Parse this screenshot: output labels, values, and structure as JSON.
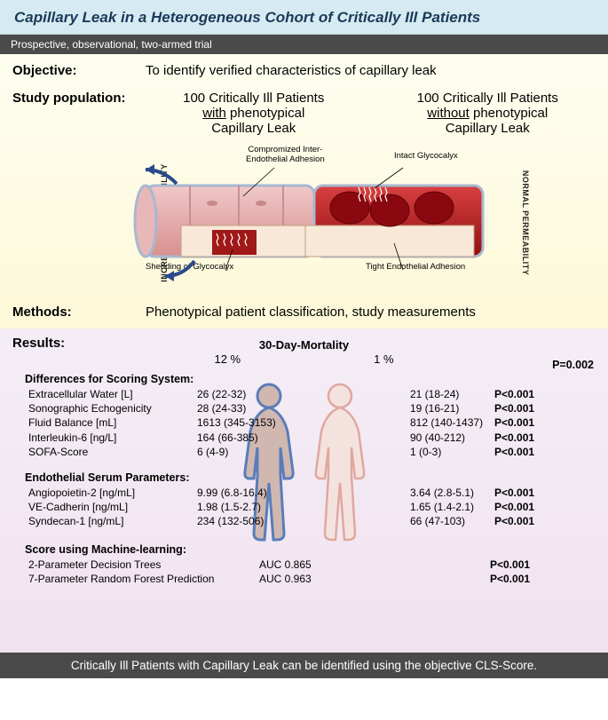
{
  "title": "Capillary Leak in a Heterogeneous Cohort of Critically Ill Patients",
  "subtitle": "Prospective, observational, two-armed trial",
  "objective_label": "Objective:",
  "objective_text": "To identify verified characteristics of capillary leak",
  "studypop_label": "Study population:",
  "pop_left_line1": "100 Critically Ill Patients",
  "pop_left_under": "with",
  "pop_left_line2_tail": " phenotypical",
  "pop_left_line3": "Capillary Leak",
  "pop_right_line1": "100 Critically Ill Patients",
  "pop_right_under": "without",
  "pop_right_line2_tail": " phenotypical",
  "pop_right_line3": "Capillary Leak",
  "perm_left": "INCREASED PERMEABILITY",
  "perm_right": "NORMAL PERMEABILITY",
  "dlabel_compromised_l1": "Compromized Inter-",
  "dlabel_compromised_l2": "Endothelial Adhesion",
  "dlabel_intact": "Intact Glycocalyx",
  "dlabel_shedding": "Shedding of Glycocalyx",
  "dlabel_tight": "Tight Endothelial Adhesion",
  "methods_label": "Methods:",
  "methods_text": "Phenotypical patient classification, study measurements",
  "results_label": "Results:",
  "mortality_header": "30-Day-Mortality",
  "mortality_left": "12 %",
  "mortality_right": "1 %",
  "p_mortality": "P=0.002",
  "sect_diff": "Differences for Scoring System:",
  "diff_rows": [
    {
      "name": "Extracellular Water [L]",
      "v1": "26 (22-32)",
      "v2": "21 (18-24)",
      "p": "P<0.001"
    },
    {
      "name": "Sonographic Echogenicity",
      "v1": "28 (24-33)",
      "v2": "19 (16-21)",
      "p": "P<0.001"
    },
    {
      "name": "Fluid Balance [mL]",
      "v1": "1613 (345-3153)",
      "v2": "812 (140-1437)",
      "p": "P<0.001"
    },
    {
      "name": "Interleukin-6 [ng/L]",
      "v1": "164 (66-385)",
      "v2": "90 (40-212)",
      "p": "P<0.001"
    },
    {
      "name": "SOFA-Score",
      "v1": "6 (4-9)",
      "v2": "1 (0-3)",
      "p": "P<0.001"
    }
  ],
  "sect_endo": "Endothelial Serum Parameters:",
  "endo_rows": [
    {
      "name": "Angiopoietin-2 [ng/mL]",
      "v1": "9.99 (6.8-16.4)",
      "v2": "3.64 (2.8-5.1)",
      "p": "P<0.001"
    },
    {
      "name": "VE-Cadherin [ng/mL]",
      "v1": "1.98 (1.5-2.7)",
      "v2": "1.65 (1.4-2.1)",
      "p": "P<0.001"
    },
    {
      "name": "Syndecan-1 [ng/mL]",
      "v1": "234 (132-506)",
      "v2": "66 (47-103)",
      "p": "P<0.001"
    }
  ],
  "sect_ml": "Score using Machine-learning:",
  "ml_rows": [
    {
      "name": "2-Parameter Decision Trees",
      "auc": "AUC 0.865",
      "p": "P<0.001"
    },
    {
      "name": "7-Parameter Random Forest Prediction",
      "auc": "AUC 0.963",
      "p": "P<0.001"
    }
  ],
  "bottom_text": "Critically Ill Patients with Capillary Leak can be identified using the objective CLS-Score.",
  "colors": {
    "vessel_light": "#e8a0a0",
    "vessel_dark": "#b01820",
    "vessel_cut": "#f8e8d8",
    "figure_blue": "#6d95c8",
    "figure_pink": "#e9bab5",
    "arrow": "#2a4a8a"
  }
}
